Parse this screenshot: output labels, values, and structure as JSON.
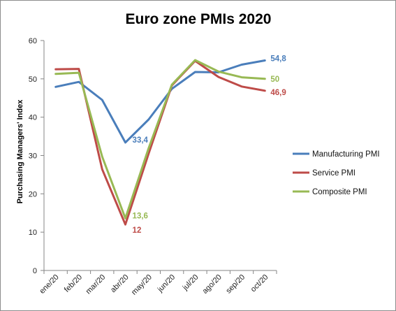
{
  "chart_data": {
    "type": "line",
    "title": "Euro zone PMIs 2020",
    "xlabel": "",
    "ylabel": "Purchasing Managers' Index",
    "ylim": [
      0,
      60
    ],
    "yticks": [
      0,
      10,
      20,
      30,
      40,
      50,
      60
    ],
    "grid": false,
    "legend_position": "right",
    "categories": [
      "ene/20",
      "feb/20",
      "mar/20",
      "abr/20",
      "may/20",
      "jun/20",
      "jul/20",
      "ago/20",
      "sep/20",
      "oct/20"
    ],
    "series": [
      {
        "name": "Manufacturing PMI",
        "color": "#4a7ebb",
        "values": [
          47.9,
          49.2,
          44.5,
          33.4,
          39.4,
          47.4,
          51.8,
          51.7,
          53.7,
          54.8
        ],
        "labels": [
          {
            "index": 3,
            "text": "33,4"
          },
          {
            "index": 9,
            "text": "54,8"
          }
        ]
      },
      {
        "name": "Service PMI",
        "color": "#be4b48",
        "values": [
          52.5,
          52.6,
          26.4,
          12.0,
          30.5,
          48.3,
          54.7,
          50.5,
          48.0,
          46.9
        ],
        "labels": [
          {
            "index": 3,
            "text": "12"
          },
          {
            "index": 9,
            "text": "46,9"
          }
        ]
      },
      {
        "name": "Composite PMI",
        "color": "#98b954",
        "values": [
          51.3,
          51.6,
          29.7,
          13.6,
          31.9,
          48.5,
          54.9,
          51.9,
          50.4,
          50.0
        ],
        "labels": [
          {
            "index": 3,
            "text": "13,6"
          },
          {
            "index": 9,
            "text": "50"
          }
        ]
      }
    ]
  }
}
